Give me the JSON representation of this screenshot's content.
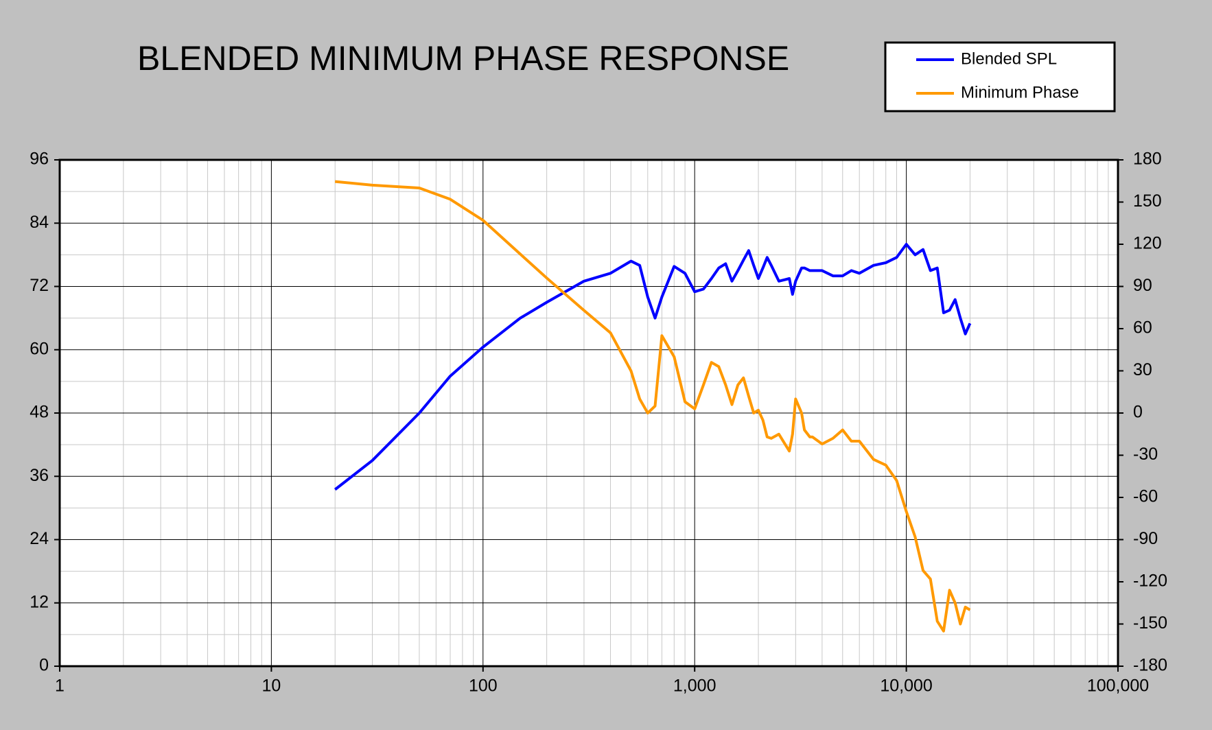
{
  "chart_data": {
    "type": "line",
    "title": "BLENDED MINIMUM PHASE RESPONSE",
    "xscale": "log",
    "xlim": [
      1,
      100000
    ],
    "xticks": [
      1,
      10,
      100,
      {
        "value": 1000,
        "label": "1,000"
      },
      {
        "value": 10000,
        "label": "10,000"
      },
      {
        "value": 100000,
        "label": "100,000"
      }
    ],
    "ylim": [
      0,
      96
    ],
    "yticks": [
      0,
      12,
      24,
      36,
      48,
      60,
      72,
      84,
      96
    ],
    "y2lim": [
      -180,
      180
    ],
    "y2ticks": [
      -180,
      -150,
      -120,
      -90,
      -60,
      -30,
      0,
      30,
      60,
      90,
      120,
      150,
      180
    ],
    "grid": true,
    "legend": "upper right",
    "x": [
      20,
      30,
      50,
      70,
      100,
      150,
      200,
      300,
      400,
      500,
      550,
      600,
      650,
      700,
      800,
      900,
      1000,
      1100,
      1200,
      1300,
      1400,
      1500,
      1600,
      1700,
      1800,
      1900,
      2000,
      2100,
      2200,
      2300,
      2500,
      2800,
      2900,
      3000,
      3200,
      3300,
      3500,
      3600,
      4000,
      4500,
      5000,
      5500,
      6000,
      7000,
      8000,
      9000,
      10000,
      11000,
      12000,
      13000,
      14000,
      15000,
      16000,
      17000,
      18000,
      19000,
      20000
    ],
    "series": [
      {
        "name": "Blended SPL",
        "color": "#0000ff",
        "values": [
          33.5,
          39,
          48,
          55,
          60.5,
          66,
          69,
          73,
          74.5,
          76.8,
          76,
          70,
          66,
          70,
          75.8,
          74.5,
          71,
          71.5,
          73.5,
          75.5,
          76.3,
          73,
          75,
          77,
          78.8,
          76,
          73.5,
          75.5,
          77.5,
          76,
          73,
          73.5,
          70.5,
          73,
          75.5,
          75.5,
          75,
          75,
          75,
          74,
          74,
          75,
          74.5,
          76,
          76.5,
          77.5,
          80,
          78,
          79,
          75,
          75.5,
          67,
          67.5,
          69.5,
          66,
          63,
          65
        ]
      },
      {
        "name": "Minimum Phase",
        "color": "#ff9900",
        "axis": "y2",
        "values": [
          164.6,
          162,
          160,
          152,
          137,
          113,
          96,
          73,
          57,
          30,
          10,
          0,
          5,
          55,
          40,
          8,
          3,
          20,
          36,
          33,
          20,
          6,
          20,
          25,
          12,
          0,
          2,
          -5,
          -17,
          -18,
          -15,
          -27,
          -15,
          10,
          0,
          -12,
          -17,
          -17,
          -22,
          -18,
          -12,
          -20,
          -20,
          -33,
          -37,
          -48,
          -70,
          -88,
          -112,
          -118,
          -148,
          -155,
          -126,
          -135,
          -150,
          -138,
          -140
        ]
      }
    ]
  }
}
